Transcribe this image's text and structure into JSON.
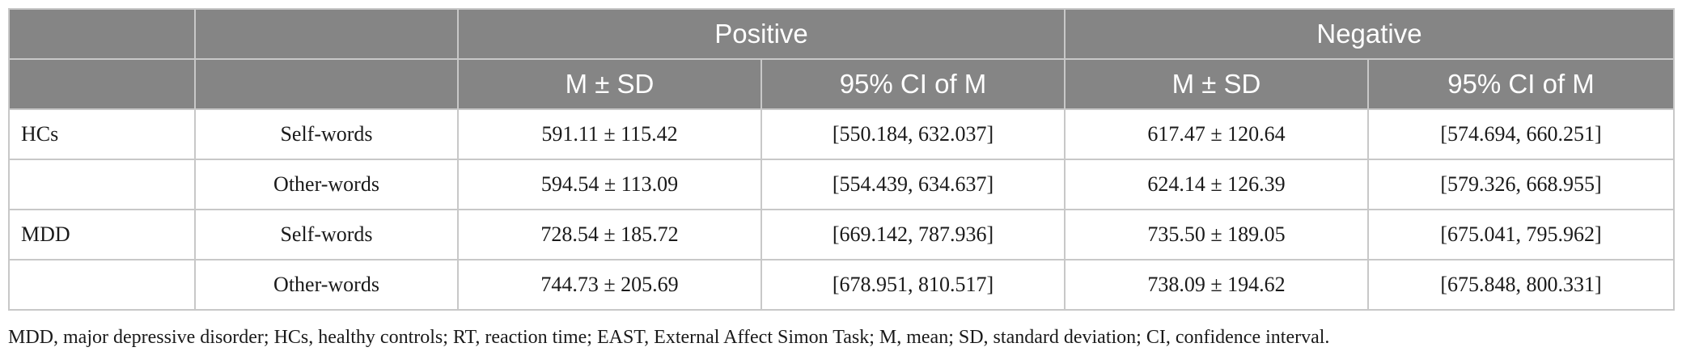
{
  "header": {
    "group_positive": "Positive",
    "group_negative": "Negative",
    "sub_mean_sd": "M ± SD",
    "sub_ci": "95% CI of M"
  },
  "rows": [
    {
      "group": "HCs",
      "condition": "Self-words",
      "pos_msd": "591.11 ± 115.42",
      "pos_ci": "[550.184, 632.037]",
      "neg_msd": "617.47 ± 120.64",
      "neg_ci": "[574.694, 660.251]"
    },
    {
      "group": "",
      "condition": "Other-words",
      "pos_msd": "594.54 ± 113.09",
      "pos_ci": "[554.439, 634.637]",
      "neg_msd": "624.14 ± 126.39",
      "neg_ci": "[579.326, 668.955]"
    },
    {
      "group": "MDD",
      "condition": "Self-words",
      "pos_msd": "728.54 ± 185.72",
      "pos_ci": "[669.142, 787.936]",
      "neg_msd": "735.50 ± 189.05",
      "neg_ci": "[675.041, 795.962]"
    },
    {
      "group": "",
      "condition": "Other-words",
      "pos_msd": "744.73 ± 205.69",
      "pos_ci": "[678.951, 810.517]",
      "neg_msd": "738.09 ± 194.62",
      "neg_ci": "[675.848, 800.331]"
    }
  ],
  "footnote": "MDD, major depressive disorder; HCs, healthy controls; RT, reaction time; EAST, External Affect Simon Task; M, mean; SD, standard deviation; CI, confidence interval.",
  "colors": {
    "header_bg": "#858585",
    "border": "#c8c8c8"
  }
}
